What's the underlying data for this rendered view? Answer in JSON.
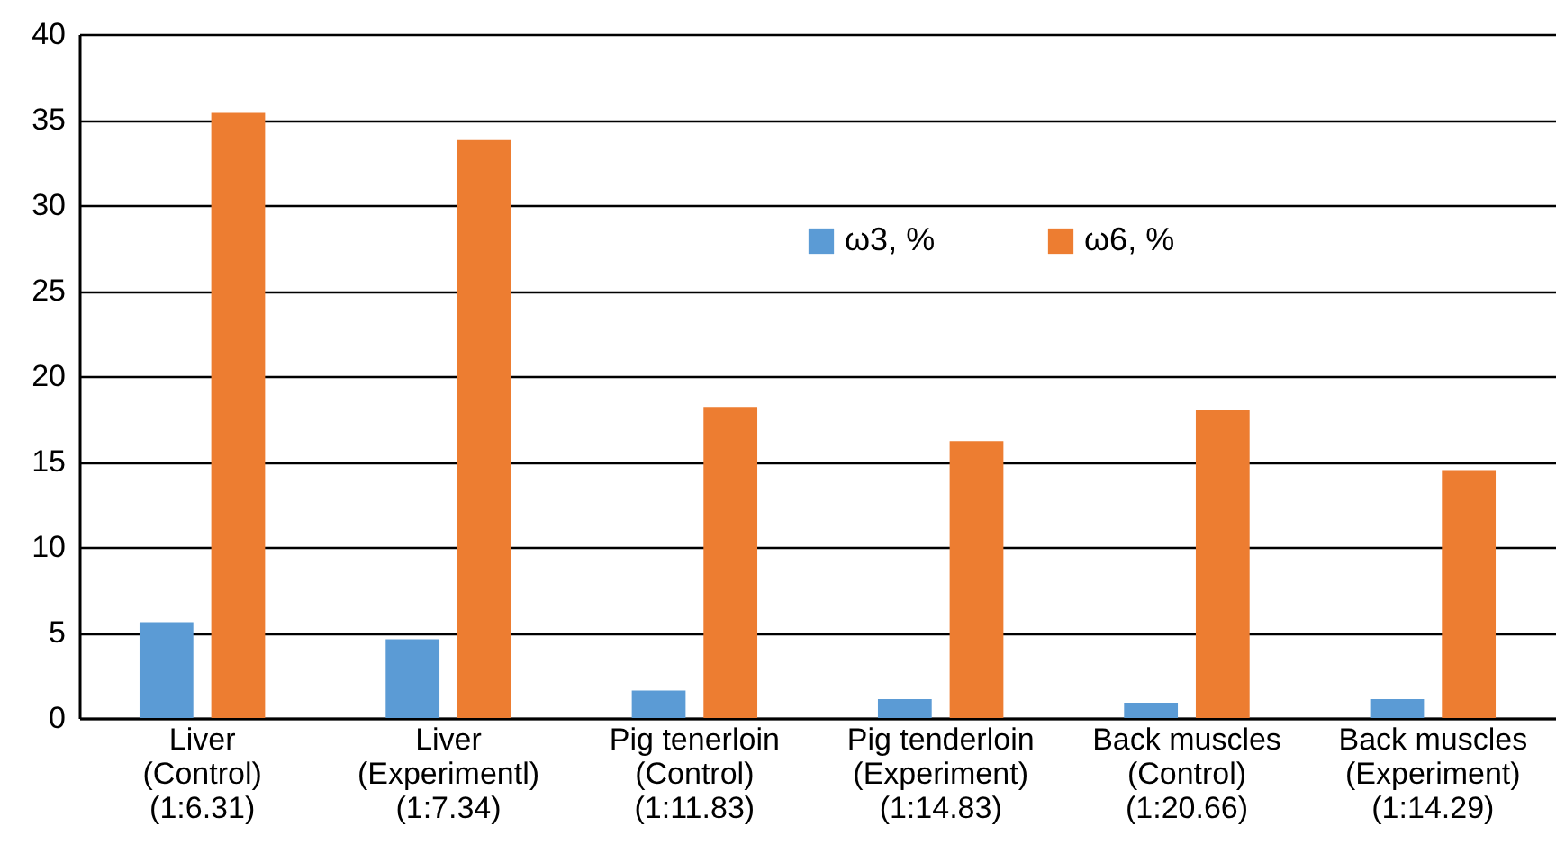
{
  "chart_data": {
    "type": "bar",
    "categories": [
      "Liver\n(Control)\n(1:6.31)",
      "Liver\n(Experimentl)\n(1:7.34)",
      "Pig tenerloin\n(Control)\n(1:11.83)",
      "Pig tenderloin\n(Experiment)\n(1:14.83)",
      "Back muscles\n(Control)\n(1:20.66)",
      "Back muscles\n(Experiment)\n(1:14.29)"
    ],
    "series": [
      {
        "name": "ω3, %",
        "color": "#5b9bd5",
        "values": [
          5.6,
          4.6,
          1.6,
          1.1,
          0.9,
          1.1
        ]
      },
      {
        "name": "ω6, %",
        "color": "#ed7d31",
        "values": [
          35.4,
          33.8,
          18.2,
          16.2,
          18.0,
          14.5
        ]
      }
    ],
    "ylim": [
      0,
      40
    ],
    "yticks": [
      0,
      5,
      10,
      15,
      20,
      25,
      30,
      35,
      40
    ],
    "grid": "y",
    "legend": "top"
  }
}
